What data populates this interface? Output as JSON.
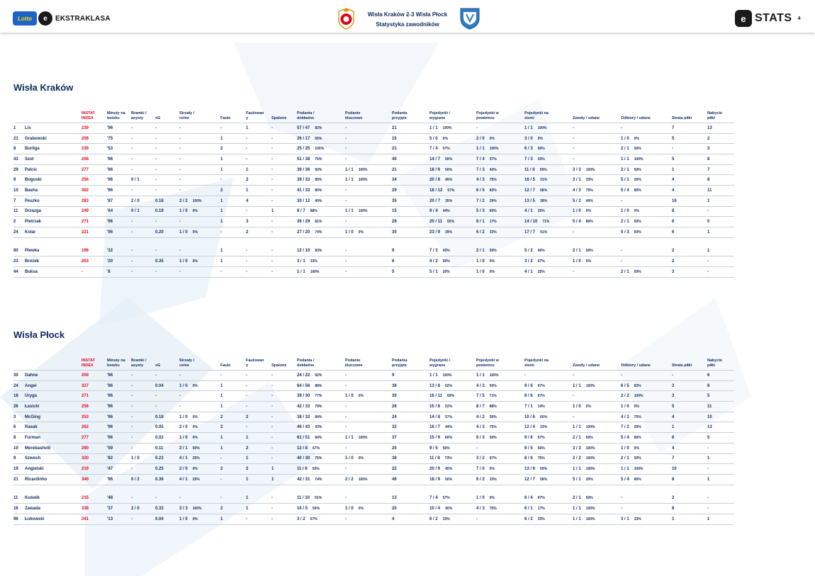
{
  "header": {
    "league_badge": "Lotto",
    "league_name": "EKSTRAKLASA",
    "match_title": "Wisła Kraków 2-3 Wisła Płock",
    "subtitle": "Statystyka zawodników",
    "stats_brand": "STATS",
    "page_number": "4"
  },
  "columns": [
    [
      "INSTAT",
      "INDEX"
    ],
    [
      "Minuty na",
      "boisku"
    ],
    [
      "Bramki /",
      "asysty"
    ],
    [
      "",
      "xG"
    ],
    [
      "Strzały /",
      "celne"
    ],
    [
      "",
      "Faule"
    ],
    [
      "Faulowan",
      "y"
    ],
    [
      "",
      "Spalone"
    ],
    [
      "Podania /",
      "dokładne"
    ],
    [
      "Podanie",
      "kluczowe"
    ],
    [
      "Podania",
      "przyjęte"
    ],
    [
      "Pojedynki /",
      "wygrane"
    ],
    [
      "Pojedynki w",
      "powietrzu"
    ],
    [
      "Pojedynki na",
      "ziemi"
    ],
    [
      "",
      "Zwody / udane"
    ],
    [
      "",
      "Odbiory / udane"
    ],
    [
      "",
      "Strata piłki"
    ],
    [
      "Nabycie",
      "piłki"
    ]
  ],
  "teams": [
    {
      "name": "Wisła Kraków",
      "rows": [
        [
          "1",
          "Lis",
          "239",
          "'96",
          "-",
          "-",
          "-",
          "-",
          "1",
          "-",
          "57 / 47",
          "82%",
          "-",
          "",
          "21",
          "1 / 1",
          "100%",
          "-",
          "",
          "1 / 1",
          "100%",
          "-",
          "",
          "-",
          "",
          "7",
          "13"
        ],
        [
          "21",
          "Grabowski",
          "208",
          "'75",
          "-",
          "-",
          "-",
          "1",
          "-",
          "-",
          "26 / 17",
          "65%",
          "-",
          "",
          "15",
          "5 / 0",
          "0%",
          "2 / 0",
          "0%",
          "3 / 0",
          "0%",
          "-",
          "",
          "1 / 0",
          "0%",
          "5",
          "2"
        ],
        [
          "8",
          "Burliga",
          "239",
          "'53",
          "-",
          "-",
          "-",
          "2",
          "-",
          "-",
          "25 / 25",
          "100%",
          "-",
          "",
          "21",
          "7 / 4",
          "57%",
          "1 / 1",
          "100%",
          "6 / 3",
          "50%",
          "-",
          "",
          "2 / 1",
          "50%",
          "-",
          "3"
        ],
        [
          "43",
          "Szot",
          "206",
          "'96",
          "-",
          "-",
          "-",
          "1",
          "-",
          "-",
          "51 / 38",
          "75%",
          "-",
          "",
          "40",
          "14 / 7",
          "50%",
          "7 / 4",
          "57%",
          "7 / 3",
          "43%",
          "-",
          "",
          "1 / 1",
          "100%",
          "5",
          "8"
        ],
        [
          "29",
          "Palcic",
          "277",
          "'96",
          "-",
          "-",
          "-",
          "1",
          "1",
          "-",
          "39 / 36",
          "92%",
          "1 / 1",
          "100%",
          "21",
          "18 / 9",
          "50%",
          "7 / 3",
          "43%",
          "11 / 6",
          "55%",
          "3 / 3",
          "100%",
          "2 / 1",
          "50%",
          "1",
          "7"
        ],
        [
          "9",
          "Boguski",
          "256",
          "'96",
          "0 / 1",
          "-",
          "-",
          "-",
          "2",
          "-",
          "39 / 33",
          "85%",
          "1 / 1",
          "100%",
          "34",
          "20 / 8",
          "40%",
          "4 / 3",
          "75%",
          "16 / 5",
          "31%",
          "3 / 1",
          "33%",
          "5 / 1",
          "20%",
          "4",
          "8"
        ],
        [
          "10",
          "Basha",
          "302",
          "'96",
          "-",
          "-",
          "-",
          "2",
          "1",
          "-",
          "41 / 33",
          "80%",
          "-",
          "",
          "29",
          "18 / 12",
          "67%",
          "6 / 5",
          "83%",
          "12 / 7",
          "58%",
          "4 / 3",
          "75%",
          "5 / 4",
          "80%",
          "4",
          "11"
        ],
        [
          "7",
          "Peszko",
          "283",
          "'87",
          "2 / 0",
          "0.18",
          "2 / 2|100%",
          "1",
          "4",
          "-",
          "30 / 12",
          "40%",
          "-",
          "",
          "35",
          "20 / 7",
          "35%",
          "7 / 2",
          "29%",
          "13 / 5",
          "38%",
          "5 / 2",
          "40%",
          "-",
          "",
          "16",
          "1"
        ],
        [
          "11",
          "Drzazga",
          "249",
          "'64",
          "0 / 1",
          "0.19",
          "1 / 0|0%",
          "1",
          "-",
          "1",
          "8 / 7",
          "88%",
          "1 / 1",
          "100%",
          "15",
          "9 / 4",
          "44%",
          "5 / 3",
          "60%",
          "4 / 1",
          "25%",
          "1 / 0",
          "0%",
          "1 / 0",
          "0%",
          "8",
          "-"
        ],
        [
          "2",
          "Pietrzak",
          "271",
          "'96",
          "-",
          "-",
          "-",
          "1",
          "3",
          "-",
          "36 / 29",
          "81%",
          "-",
          "",
          "28",
          "20 / 11",
          "55%",
          "6 / 1",
          "17%",
          "14 / 10",
          "71%",
          "5 / 4",
          "80%",
          "2 / 1",
          "50%",
          "6",
          "5"
        ],
        [
          "24",
          "Kolar",
          "221",
          "'96",
          "-",
          "0.20",
          "1 / 0|0%",
          "-",
          "2",
          "-",
          "27 / 20",
          "74%",
          "1 / 0",
          "0%",
          "30",
          "23 / 9",
          "39%",
          "6 / 2",
          "33%",
          "17 / 7",
          "41%",
          "-",
          "",
          "5 / 3",
          "60%",
          "6",
          "1"
        ],
        "spacer",
        [
          "80",
          "Plewka",
          "196",
          "'32",
          "-",
          "-",
          "-",
          "1",
          "-",
          "-",
          "12 / 10",
          "83%",
          "-",
          "",
          "9",
          "7 / 3",
          "43%",
          "2 / 1",
          "50%",
          "5 / 2",
          "40%",
          "2 / 1",
          "50%",
          "-",
          "",
          "2",
          "1"
        ],
        [
          "23",
          "Brożek",
          "203",
          "'20",
          "-",
          "0.35",
          "1 / 0|0%",
          "1",
          "-",
          "-",
          "3 / 1",
          "33%",
          "-",
          "",
          "6",
          "4 / 2",
          "50%",
          "1 / 0",
          "0%",
          "3 / 2",
          "67%",
          "1 / 0",
          "0%",
          "-",
          "",
          "2",
          "-"
        ],
        [
          "44",
          "Buksa",
          "-",
          "'8",
          "-",
          "-",
          "-",
          "-",
          "-",
          "-",
          "1 / 1",
          "100%",
          "-",
          "",
          "5",
          "5 / 1",
          "20%",
          "1 / 0",
          "0%",
          "4 / 1",
          "25%",
          "-",
          "",
          "2 / 1",
          "50%",
          "3",
          "-"
        ]
      ]
    },
    {
      "name": "Wisła Płock",
      "rows": [
        [
          "30",
          "Dahne",
          "200",
          "'96",
          "-",
          "-",
          "-",
          "-",
          "-",
          "-",
          "24 / 22",
          "92%",
          "-",
          "",
          "9",
          "1 / 1",
          "100%",
          "1 / 1",
          "100%",
          "-",
          "",
          "-",
          "",
          "-",
          "",
          "-",
          "6"
        ],
        [
          "24",
          "Angel",
          "327",
          "'96",
          "-",
          "0.04",
          "1 / 0|0%",
          "1",
          "-",
          "-",
          "64 / 56",
          "88%",
          "-",
          "",
          "38",
          "13 / 8",
          "62%",
          "4 / 2",
          "50%",
          "9 / 6",
          "67%",
          "1 / 1",
          "100%",
          "6 / 5",
          "83%",
          "3",
          "8"
        ],
        [
          "18",
          "Uryga",
          "271",
          "'96",
          "-",
          "-",
          "-",
          "1",
          "-",
          "-",
          "39 / 30",
          "77%",
          "1 / 0",
          "0%",
          "30",
          "16 / 11",
          "69%",
          "7 / 5",
          "71%",
          "9 / 6",
          "67%",
          "-",
          "",
          "2 / 2",
          "100%",
          "3",
          "5"
        ],
        [
          "26",
          "Łasicki",
          "256",
          "'96",
          "-",
          "-",
          "-",
          "1",
          "-",
          "-",
          "42 / 33",
          "79%",
          "-",
          "",
          "26",
          "15 / 8",
          "53%",
          "8 / 7",
          "88%",
          "7 / 1",
          "14%",
          "1 / 0",
          "0%",
          "1 / 0",
          "0%",
          "5",
          "11"
        ],
        [
          "3",
          "McGing",
          "253",
          "'96",
          "-",
          "0.18",
          "1 / 0|0%",
          "2",
          "2",
          "-",
          "38 / 32",
          "84%",
          "-",
          "",
          "24",
          "14 / 8",
          "57%",
          "4 / 2",
          "50%",
          "10 / 6",
          "60%",
          "-",
          "",
          "4 / 3",
          "75%",
          "4",
          "10"
        ],
        [
          "6",
          "Rasak",
          "262",
          "'96",
          "-",
          "0.05",
          "2 / 0|0%",
          "2",
          "-",
          "-",
          "46 / 43",
          "93%",
          "-",
          "",
          "32",
          "16 / 7",
          "44%",
          "4 / 3",
          "75%",
          "12 / 4",
          "33%",
          "1 / 1",
          "100%",
          "7 / 2",
          "29%",
          "1",
          "13"
        ],
        [
          "8",
          "Furman",
          "277",
          "'96",
          "-",
          "0.02",
          "1 / 0|0%",
          "1",
          "1",
          "-",
          "61 / 51",
          "84%",
          "1 / 1",
          "100%",
          "37",
          "15 / 9",
          "60%",
          "6 / 3",
          "50%",
          "9 / 6",
          "67%",
          "2 / 1",
          "50%",
          "5 / 4",
          "80%",
          "6",
          "5"
        ],
        [
          "10",
          "Merebashvili",
          "290",
          "'59",
          "-",
          "0.11",
          "2 / 1|50%",
          "1",
          "2",
          "-",
          "12 / 8",
          "67%",
          "-",
          "",
          "20",
          "9 / 5",
          "56%",
          "-",
          "",
          "9 / 5",
          "56%",
          "3 / 3",
          "100%",
          "1 / 0",
          "0%",
          "4",
          "-"
        ],
        [
          "9",
          "Szwoch",
          "320",
          "'82",
          "1 / 0",
          "0.23",
          "4 / 1|25%",
          "-",
          "1",
          "-",
          "40 / 30",
          "75%",
          "1 / 0",
          "0%",
          "38",
          "11 / 8",
          "73%",
          "3 / 2",
          "67%",
          "8 / 6",
          "75%",
          "2 / 2",
          "100%",
          "2 / 1",
          "50%",
          "7",
          "1"
        ],
        [
          "19",
          "Angielski",
          "219",
          "'47",
          "-",
          "0.25",
          "2 / 0|0%",
          "2",
          "2",
          "1",
          "11 / 6",
          "55%",
          "-",
          "",
          "22",
          "20 / 9",
          "45%",
          "7 / 0",
          "0%",
          "13 / 9",
          "69%",
          "1 / 1",
          "100%",
          "1 / 1",
          "100%",
          "10",
          "-"
        ],
        [
          "21",
          "Ricardinho",
          "340",
          "'96",
          "0 / 2",
          "0.36",
          "4 / 1|25%",
          "-",
          "1",
          "1",
          "42 / 31",
          "74%",
          "2 / 2",
          "100%",
          "46",
          "18 / 9",
          "50%",
          "6 / 2",
          "33%",
          "12 / 7",
          "58%",
          "5 / 1",
          "20%",
          "5 / 4",
          "80%",
          "8",
          "1"
        ],
        "spacer",
        [
          "11",
          "Kuświk",
          "215",
          "'48",
          "-",
          "-",
          "-",
          "-",
          "1",
          "-",
          "11 / 10",
          "91%",
          "-",
          "",
          "13",
          "7 / 4",
          "57%",
          "1 / 0",
          "0%",
          "6 / 4",
          "67%",
          "2 / 1",
          "50%",
          "-",
          "",
          "2",
          "-"
        ],
        [
          "16",
          "Zawada",
          "338",
          "'37",
          "2 / 0",
          "0.33",
          "3 / 3|100%",
          "2",
          "1",
          "-",
          "10 / 5",
          "50%",
          "1 / 0",
          "0%",
          "20",
          "10 / 4",
          "40%",
          "4 / 3",
          "75%",
          "6 / 1",
          "17%",
          "1 / 1",
          "100%",
          "-",
          "",
          "8",
          "-"
        ],
        [
          "96",
          "Łukowski",
          "241",
          "'13",
          "-",
          "0.04",
          "1 / 0|0%",
          "1",
          "-",
          "-",
          "3 / 2",
          "67%",
          "-",
          "",
          "4",
          "6 / 2",
          "33%",
          "-",
          "",
          "6 / 2",
          "33%",
          "1 / 1",
          "100%",
          "3 / 1",
          "33%",
          "1",
          "1"
        ]
      ]
    }
  ]
}
